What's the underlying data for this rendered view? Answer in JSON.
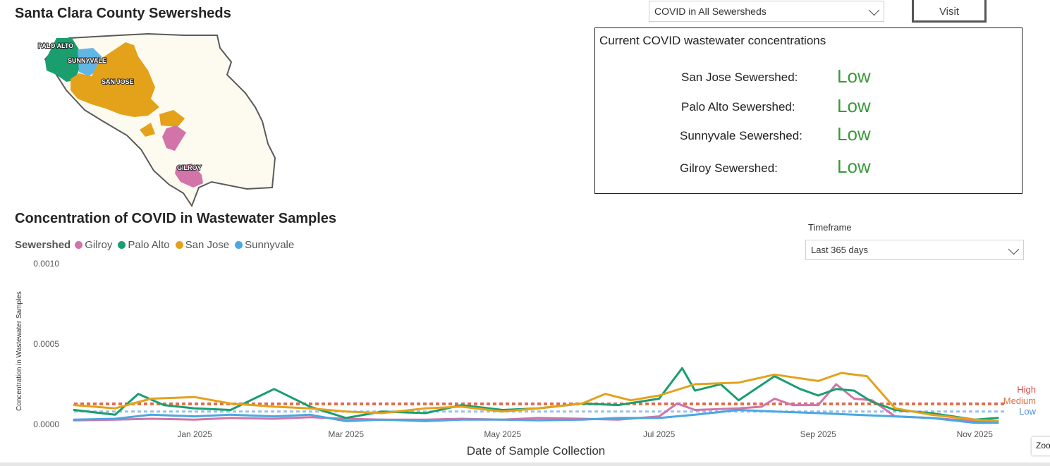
{
  "map": {
    "title": "Santa Clara County Sewersheds",
    "labels": [
      "PALO ALTO",
      "SUNNYVALE",
      "SAN JOSE",
      "GILROY"
    ]
  },
  "sewershed_select": {
    "value": "COVID in All Sewersheds"
  },
  "visit_button": {
    "label": "Visit"
  },
  "current_levels": {
    "title": "Current COVID wastewater concentrations",
    "rows": [
      {
        "label": "San Jose Sewershed:",
        "level": "Low"
      },
      {
        "label": "Palo Alto Sewershed:",
        "level": "Low"
      },
      {
        "label": "Sunnyvale Sewershed:",
        "level": "Low"
      },
      {
        "label": "Gilroy Sewershed:",
        "level": "Low"
      }
    ],
    "level_color": "#3a9a3a"
  },
  "timeframe": {
    "label": "Timeframe",
    "value": "Last 365 days"
  },
  "zoom_button": {
    "label": "Zoo"
  },
  "chart_data": {
    "type": "line",
    "title": "Concentration of COVID in Wastewater Samples",
    "xlabel": "Date of Sample Collection",
    "ylabel": "Concentration in Wastewater Samples",
    "legend_title": "Sewershed",
    "legend_position": "top-left",
    "ylim": [
      0,
      0.001
    ],
    "y_ticks": [
      "0.0000",
      "0.0005",
      "0.0010"
    ],
    "x_range": [
      "2024-11-15",
      "2025-11-10"
    ],
    "x_ticks": [
      {
        "date": "2025-01-01",
        "label": "Jan 2025"
      },
      {
        "date": "2025-03-01",
        "label": "Mar 2025"
      },
      {
        "date": "2025-05-01",
        "label": "May 2025"
      },
      {
        "date": "2025-07-01",
        "label": "Jul 2025"
      },
      {
        "date": "2025-09-01",
        "label": "Sep 2025"
      },
      {
        "date": "2025-11-01",
        "label": "Nov 2025"
      }
    ],
    "grid": false,
    "thresholds": [
      {
        "name": "High",
        "value": 0.00013,
        "color": "#e04a4a"
      },
      {
        "name": "Medium",
        "value": 0.000125,
        "color": "#e0703a"
      },
      {
        "name": "Low",
        "value": 8e-05,
        "color": "#4a8fd6"
      }
    ],
    "series": [
      {
        "name": "Gilroy",
        "color": "#d273aa",
        "points": [
          [
            "2024-11-15",
            2.5e-05
          ],
          [
            "2024-12-01",
            3e-05
          ],
          [
            "2024-12-15",
            3.5e-05
          ],
          [
            "2025-01-01",
            3e-05
          ],
          [
            "2025-01-15",
            4e-05
          ],
          [
            "2025-02-01",
            3.5e-05
          ],
          [
            "2025-02-15",
            4.5e-05
          ],
          [
            "2025-03-01",
            3.5e-05
          ],
          [
            "2025-03-15",
            3e-05
          ],
          [
            "2025-04-01",
            3e-05
          ],
          [
            "2025-04-15",
            3.5e-05
          ],
          [
            "2025-05-01",
            3e-05
          ],
          [
            "2025-05-15",
            4e-05
          ],
          [
            "2025-06-01",
            3.5e-05
          ],
          [
            "2025-06-15",
            3e-05
          ],
          [
            "2025-07-01",
            5e-05
          ],
          [
            "2025-07-08",
            0.00013
          ],
          [
            "2025-07-15",
            9e-05
          ],
          [
            "2025-08-01",
            0.0001
          ],
          [
            "2025-08-10",
            0.00011
          ],
          [
            "2025-08-15",
            0.00016
          ],
          [
            "2025-08-22",
            0.00012
          ],
          [
            "2025-09-01",
            0.00012
          ],
          [
            "2025-09-08",
            0.00025
          ],
          [
            "2025-09-15",
            0.00016
          ],
          [
            "2025-09-22",
            0.00015
          ],
          [
            "2025-10-01",
            5e-05
          ],
          [
            "2025-10-15",
            4e-05
          ],
          [
            "2025-11-01",
            2e-05
          ],
          [
            "2025-11-10",
            2e-05
          ]
        ]
      },
      {
        "name": "Palo Alto",
        "color": "#1a9e6e",
        "points": [
          [
            "2024-11-15",
            9e-05
          ],
          [
            "2024-12-01",
            6e-05
          ],
          [
            "2024-12-10",
            0.00019
          ],
          [
            "2024-12-20",
            0.00012
          ],
          [
            "2025-01-01",
            0.0001
          ],
          [
            "2025-01-15",
            9e-05
          ],
          [
            "2025-02-01",
            0.00022
          ],
          [
            "2025-02-15",
            0.00011
          ],
          [
            "2025-03-01",
            4e-05
          ],
          [
            "2025-03-15",
            8e-05
          ],
          [
            "2025-04-01",
            7e-05
          ],
          [
            "2025-04-15",
            0.00012
          ],
          [
            "2025-05-01",
            9e-05
          ],
          [
            "2025-05-15",
            0.0001
          ],
          [
            "2025-06-01",
            0.00013
          ],
          [
            "2025-06-15",
            0.00012
          ],
          [
            "2025-07-01",
            0.00016
          ],
          [
            "2025-07-10",
            0.00035
          ],
          [
            "2025-07-15",
            0.00021
          ],
          [
            "2025-07-25",
            0.00025
          ],
          [
            "2025-08-01",
            0.00015
          ],
          [
            "2025-08-15",
            0.0003
          ],
          [
            "2025-08-25",
            0.00022
          ],
          [
            "2025-09-01",
            0.00018
          ],
          [
            "2025-09-08",
            0.00022
          ],
          [
            "2025-09-15",
            0.00021
          ],
          [
            "2025-09-22",
            0.00014
          ],
          [
            "2025-10-01",
            9e-05
          ],
          [
            "2025-10-15",
            7e-05
          ],
          [
            "2025-11-01",
            3e-05
          ],
          [
            "2025-11-10",
            4e-05
          ]
        ]
      },
      {
        "name": "San Jose",
        "color": "#e3a21a",
        "points": [
          [
            "2024-11-15",
            0.00012
          ],
          [
            "2024-12-01",
            0.0001
          ],
          [
            "2024-12-15",
            0.00016
          ],
          [
            "2025-01-01",
            0.00017
          ],
          [
            "2025-01-15",
            0.00013
          ],
          [
            "2025-02-01",
            0.00011
          ],
          [
            "2025-02-15",
            0.0001
          ],
          [
            "2025-03-01",
            8e-05
          ],
          [
            "2025-03-15",
            7e-05
          ],
          [
            "2025-04-01",
            0.0001
          ],
          [
            "2025-04-15",
            0.00011
          ],
          [
            "2025-05-01",
            8e-05
          ],
          [
            "2025-05-15",
            0.0001
          ],
          [
            "2025-06-01",
            0.00013
          ],
          [
            "2025-06-10",
            0.00019
          ],
          [
            "2025-06-20",
            0.00015
          ],
          [
            "2025-07-01",
            0.00018
          ],
          [
            "2025-07-15",
            0.00025
          ],
          [
            "2025-08-01",
            0.00026
          ],
          [
            "2025-08-15",
            0.00031
          ],
          [
            "2025-09-01",
            0.00027
          ],
          [
            "2025-09-10",
            0.00032
          ],
          [
            "2025-09-20",
            0.0003
          ],
          [
            "2025-10-01",
            0.0001
          ],
          [
            "2025-10-15",
            6e-05
          ],
          [
            "2025-11-01",
            3e-05
          ],
          [
            "2025-11-10",
            2e-05
          ]
        ]
      },
      {
        "name": "Sunnyvale",
        "color": "#4aa8e0",
        "points": [
          [
            "2024-11-15",
            3e-05
          ],
          [
            "2024-12-01",
            3.5e-05
          ],
          [
            "2024-12-15",
            6e-05
          ],
          [
            "2025-01-01",
            5e-05
          ],
          [
            "2025-01-15",
            6e-05
          ],
          [
            "2025-02-01",
            5e-05
          ],
          [
            "2025-02-15",
            6e-05
          ],
          [
            "2025-03-01",
            2e-05
          ],
          [
            "2025-03-15",
            3e-05
          ],
          [
            "2025-04-01",
            2e-05
          ],
          [
            "2025-04-15",
            3e-05
          ],
          [
            "2025-05-01",
            3e-05
          ],
          [
            "2025-05-15",
            2.5e-05
          ],
          [
            "2025-06-01",
            3e-05
          ],
          [
            "2025-06-15",
            4e-05
          ],
          [
            "2025-07-01",
            4e-05
          ],
          [
            "2025-07-15",
            6e-05
          ],
          [
            "2025-08-01",
            9e-05
          ],
          [
            "2025-08-15",
            8e-05
          ],
          [
            "2025-09-01",
            7e-05
          ],
          [
            "2025-09-15",
            6e-05
          ],
          [
            "2025-10-01",
            5e-05
          ],
          [
            "2025-10-15",
            4e-05
          ],
          [
            "2025-11-01",
            1e-05
          ],
          [
            "2025-11-10",
            1e-05
          ]
        ]
      }
    ]
  }
}
